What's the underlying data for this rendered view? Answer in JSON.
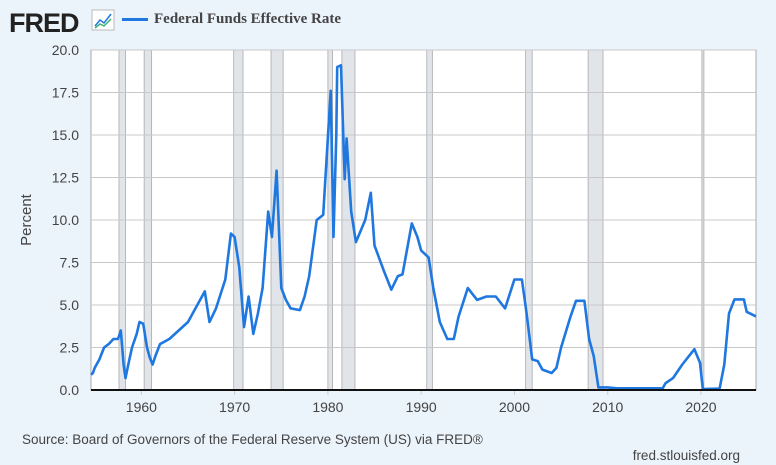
{
  "header": {
    "logo": "FRED",
    "logo_icon": "chart-line-icon",
    "legend_label": "Federal Funds Effective Rate"
  },
  "footer": {
    "source": "Source: Board of Governors of the Federal Reserve System (US) via FRED®",
    "site": "fred.stlouisfed.org"
  },
  "chart_data": {
    "type": "line",
    "title": "",
    "ylabel": "Percent",
    "xlabel": "",
    "xlim": [
      1954.6,
      2025.9
    ],
    "ylim": [
      0,
      20
    ],
    "grid": "horizontal",
    "legend_placement": "top-left",
    "colors": {
      "series": "#1f77e0",
      "recession": "#e1e5ea",
      "background": "#ebf3fb"
    },
    "yticks": [
      "0.0",
      "2.5",
      "5.0",
      "7.5",
      "10.0",
      "12.5",
      "15.0",
      "17.5",
      "20.0"
    ],
    "xticks": [
      "1960",
      "1970",
      "1980",
      "1990",
      "2000",
      "2010",
      "2020"
    ],
    "recessions": [
      [
        1957.6,
        1958.3
      ],
      [
        1960.3,
        1961.1
      ],
      [
        1969.9,
        1970.9
      ],
      [
        1973.9,
        1975.2
      ],
      [
        1980.0,
        1980.5
      ],
      [
        1981.5,
        1982.9
      ],
      [
        1990.6,
        1991.2
      ],
      [
        2001.2,
        2001.9
      ],
      [
        2007.9,
        2009.5
      ],
      [
        2020.1,
        2020.3
      ]
    ],
    "series": [
      {
        "name": "Federal Funds Effective Rate",
        "points": [
          [
            1954.6,
            0.9
          ],
          [
            1954.8,
            1.0
          ],
          [
            1955,
            1.3
          ],
          [
            1955.5,
            1.8
          ],
          [
            1956,
            2.5
          ],
          [
            1956.5,
            2.7
          ],
          [
            1957,
            3.0
          ],
          [
            1957.5,
            3.0
          ],
          [
            1957.8,
            3.5
          ],
          [
            1958.1,
            1.5
          ],
          [
            1958.3,
            0.7
          ],
          [
            1958.6,
            1.5
          ],
          [
            1959,
            2.5
          ],
          [
            1959.5,
            3.3
          ],
          [
            1959.8,
            4.0
          ],
          [
            1960.2,
            3.9
          ],
          [
            1960.6,
            2.5
          ],
          [
            1960.9,
            1.9
          ],
          [
            1961.2,
            1.5
          ],
          [
            1961.5,
            2.0
          ],
          [
            1962,
            2.7
          ],
          [
            1963,
            3.0
          ],
          [
            1964,
            3.5
          ],
          [
            1965,
            4.0
          ],
          [
            1966,
            5.0
          ],
          [
            1966.8,
            5.8
          ],
          [
            1967.3,
            4.0
          ],
          [
            1968,
            4.8
          ],
          [
            1969,
            6.5
          ],
          [
            1969.6,
            9.2
          ],
          [
            1970,
            9.0
          ],
          [
            1970.5,
            7.2
          ],
          [
            1971,
            3.7
          ],
          [
            1971.5,
            5.5
          ],
          [
            1972,
            3.3
          ],
          [
            1972.5,
            4.5
          ],
          [
            1973,
            6.0
          ],
          [
            1973.6,
            10.5
          ],
          [
            1974,
            9.0
          ],
          [
            1974.5,
            12.9
          ],
          [
            1975,
            6.0
          ],
          [
            1975.5,
            5.3
          ],
          [
            1976,
            4.8
          ],
          [
            1977,
            4.7
          ],
          [
            1977.5,
            5.5
          ],
          [
            1978,
            6.7
          ],
          [
            1978.8,
            10.0
          ],
          [
            1979.5,
            10.3
          ],
          [
            1979.9,
            14.0
          ],
          [
            1980.3,
            17.6
          ],
          [
            1980.6,
            9.0
          ],
          [
            1980.9,
            15.0
          ],
          [
            1981.0,
            19.0
          ],
          [
            1981.4,
            19.1
          ],
          [
            1981.8,
            12.4
          ],
          [
            1982.0,
            14.8
          ],
          [
            1982.5,
            10.5
          ],
          [
            1983,
            8.7
          ],
          [
            1984,
            10.0
          ],
          [
            1984.6,
            11.6
          ],
          [
            1985,
            8.5
          ],
          [
            1986,
            7.0
          ],
          [
            1986.8,
            5.9
          ],
          [
            1987.5,
            6.7
          ],
          [
            1988,
            6.8
          ],
          [
            1989,
            9.8
          ],
          [
            1989.6,
            9.0
          ],
          [
            1990,
            8.2
          ],
          [
            1990.8,
            7.8
          ],
          [
            1991.3,
            6.0
          ],
          [
            1992,
            4.0
          ],
          [
            1992.8,
            3.0
          ],
          [
            1993.5,
            3.0
          ],
          [
            1994,
            4.3
          ],
          [
            1995,
            6.0
          ],
          [
            1996,
            5.3
          ],
          [
            1997,
            5.5
          ],
          [
            1998,
            5.5
          ],
          [
            1999,
            4.8
          ],
          [
            2000,
            6.5
          ],
          [
            2000.8,
            6.5
          ],
          [
            2001.3,
            4.5
          ],
          [
            2001.9,
            1.8
          ],
          [
            2002.5,
            1.7
          ],
          [
            2003,
            1.2
          ],
          [
            2004,
            1.0
          ],
          [
            2004.5,
            1.3
          ],
          [
            2005,
            2.5
          ],
          [
            2006,
            4.3
          ],
          [
            2006.6,
            5.25
          ],
          [
            2007.5,
            5.25
          ],
          [
            2008,
            3.0
          ],
          [
            2008.5,
            2.0
          ],
          [
            2009,
            0.15
          ],
          [
            2010,
            0.15
          ],
          [
            2011,
            0.1
          ],
          [
            2015.9,
            0.1
          ],
          [
            2016.2,
            0.4
          ],
          [
            2017,
            0.7
          ],
          [
            2018,
            1.5
          ],
          [
            2019.3,
            2.4
          ],
          [
            2019.9,
            1.6
          ],
          [
            2020.2,
            0.05
          ],
          [
            2022.0,
            0.08
          ],
          [
            2022.5,
            1.5
          ],
          [
            2023,
            4.5
          ],
          [
            2023.6,
            5.33
          ],
          [
            2024.6,
            5.33
          ],
          [
            2024.9,
            4.6
          ],
          [
            2025.9,
            4.33
          ]
        ]
      }
    ]
  }
}
